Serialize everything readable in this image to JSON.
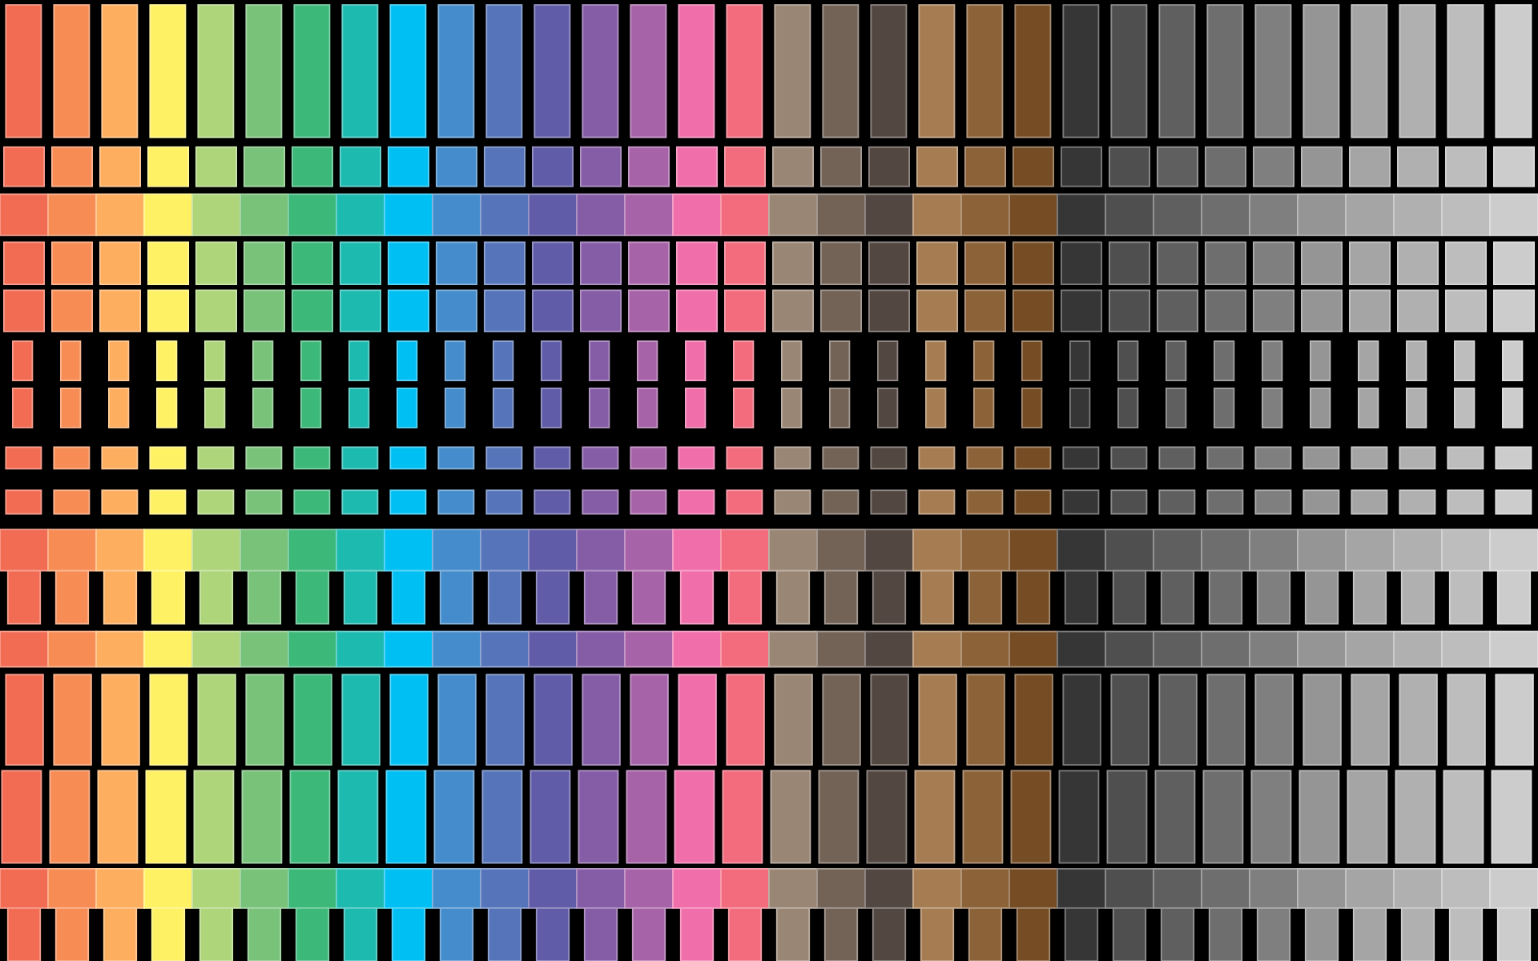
{
  "palette": [
    "#f26b53",
    "#f78d55",
    "#fdae5f",
    "#fff164",
    "#aed57a",
    "#79c27a",
    "#3cb879",
    "#1dbab0",
    "#00bff3",
    "#448ccb",
    "#5574b9",
    "#605ca8",
    "#855ca6",
    "#a763a8",
    "#f06eaa",
    "#f26c7d",
    "#998675",
    "#736357",
    "#534741",
    "#a67c52",
    "#8c6239",
    "#754c24",
    "#363636",
    "#4f4f4f",
    "#5f5f5f",
    "#6e6e6e",
    "#7f7f7f",
    "#959595",
    "#a5a5a5",
    "#b0b0b0",
    "#bdbdbd",
    "#cccccc"
  ]
}
